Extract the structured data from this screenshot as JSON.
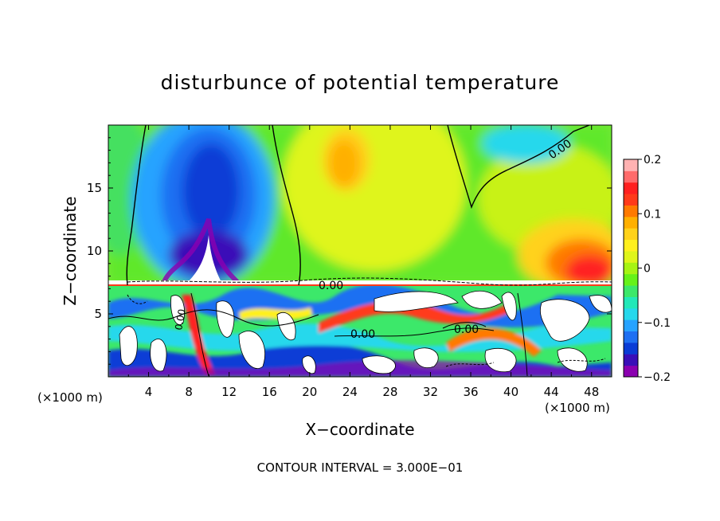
{
  "chart_data": {
    "type": "heatmap",
    "title": "disturbunce of potential temperature",
    "xlabel": "X−coordinate",
    "ylabel": "Z−coordinate",
    "x_unit_left": "(×1000 m)",
    "x_unit_right": "(×1000 m)",
    "x_ticks": [
      "4",
      "8",
      "12",
      "16",
      "20",
      "24",
      "28",
      "32",
      "36",
      "40",
      "44",
      "48"
    ],
    "y_ticks": [
      "5",
      "10",
      "15"
    ],
    "xlim": [
      0,
      50
    ],
    "ylim": [
      0,
      20
    ],
    "footer": "CONTOUR INTERVAL = 3.000E−01",
    "colorbar": {
      "ticks": [
        "0.2",
        "0.1",
        "0",
        "−0.1",
        "−0.2"
      ],
      "range": [
        -0.2,
        0.2
      ],
      "colors": [
        "#8b00b0",
        "#3a0fb8",
        "#0a3cd6",
        "#1e6ff2",
        "#27a3ff",
        "#26d8ec",
        "#22e8b8",
        "#3ce86a",
        "#66f21a",
        "#a7f414",
        "#dff51a",
        "#fff01e",
        "#ffd21a",
        "#ffb000",
        "#ff7a00",
        "#ff3a1a",
        "#ff2020",
        "#ff6b6b",
        "#ffb2b2"
      ]
    },
    "contour_labels": [
      "0.00",
      "0.00",
      "0.00",
      "0.00",
      "0.00"
    ]
  }
}
